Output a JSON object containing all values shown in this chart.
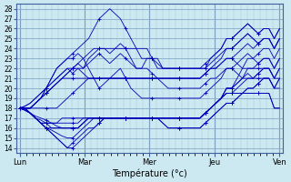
{
  "xlabel": "Température (°c)",
  "bg_color": "#cce8f0",
  "grid_major_color": "#88aac8",
  "grid_minor_color": "#aac8dc",
  "line_color": "#0000bb",
  "marker": "+",
  "days": [
    "Lun",
    "Mar",
    "Mer",
    "Jeu",
    "Ven"
  ],
  "ylim": [
    13.5,
    28.5
  ],
  "yticks": [
    14,
    15,
    16,
    17,
    18,
    19,
    20,
    21,
    22,
    23,
    24,
    25,
    26,
    27,
    28
  ],
  "n_per_day": 10,
  "n_days": 5,
  "series": [
    [
      18,
      18.2,
      18.5,
      19,
      19.5,
      20,
      20.5,
      21,
      21.5,
      22,
      22,
      22.5,
      22,
      23,
      23.5,
      24,
      24,
      23.5,
      24,
      24.5,
      24,
      23,
      22,
      22,
      23,
      23,
      23,
      22,
      22,
      22,
      22,
      22,
      22,
      22,
      22,
      22,
      23,
      23.5,
      24,
      25,
      25,
      25.5,
      26,
      26.5,
      26,
      25.5,
      26,
      26,
      25,
      26
    ],
    [
      18,
      18.2,
      18.5,
      19,
      19.5,
      20,
      20.5,
      21,
      21.5,
      22,
      21.5,
      22,
      22,
      22.5,
      23,
      23.5,
      23,
      22.5,
      23,
      23.5,
      23,
      22.5,
      22,
      22,
      22,
      21.5,
      21,
      21,
      21,
      21,
      21,
      21,
      21,
      21,
      21,
      21.5,
      22,
      22.5,
      23,
      24,
      24,
      24.5,
      25,
      25.5,
      25,
      24.5,
      25,
      25,
      24,
      25
    ],
    [
      18,
      18,
      18,
      18.5,
      19,
      20,
      21,
      22,
      22.5,
      23,
      23,
      23.5,
      23,
      22,
      21,
      20,
      20.5,
      21,
      21.5,
      22,
      21,
      20,
      19.5,
      19,
      19,
      19,
      19,
      19,
      19,
      19,
      19,
      19,
      19,
      19,
      19,
      19.5,
      20,
      20.5,
      21,
      22,
      22,
      22.5,
      23,
      23.5,
      23,
      22.5,
      23,
      23,
      22,
      23
    ],
    [
      18,
      18,
      18,
      18.5,
      19,
      20,
      21,
      22,
      22.5,
      23,
      23.5,
      24,
      24.5,
      25,
      26,
      27,
      27.5,
      28,
      27.5,
      27,
      26,
      25,
      24,
      23,
      23,
      23,
      22.5,
      22,
      22,
      22,
      22,
      22,
      22,
      22,
      22,
      22,
      22.5,
      23,
      23.5,
      24,
      24,
      24.5,
      25,
      25.5,
      25,
      24.5,
      25,
      25,
      24,
      25
    ],
    [
      18,
      18,
      17.5,
      17,
      16.5,
      16,
      15.5,
      15,
      14.5,
      14,
      14,
      14.5,
      15,
      15.5,
      16,
      16.5,
      17,
      17,
      17,
      17,
      17,
      17,
      17,
      17,
      17,
      17,
      17,
      17,
      17,
      17,
      17,
      17,
      17,
      17,
      17,
      17.5,
      18,
      18.5,
      19,
      20,
      20,
      21,
      22,
      23,
      23,
      23.5,
      24,
      24,
      23,
      24
    ],
    [
      18,
      18,
      17.5,
      17,
      16.5,
      16,
      15.5,
      15,
      14.5,
      14,
      14.5,
      15,
      15.5,
      16,
      16,
      16.5,
      17,
      17,
      17,
      17,
      17,
      17,
      17,
      17,
      17,
      17,
      17,
      17,
      17,
      17,
      17,
      17,
      17,
      17,
      17,
      17.5,
      18,
      18.5,
      19,
      20,
      20,
      20.5,
      21,
      22,
      22,
      22.5,
      23,
      23,
      22,
      23
    ],
    [
      18,
      17.8,
      17.5,
      17,
      16.5,
      16,
      15.8,
      15.5,
      15.2,
      15,
      15,
      15.5,
      16,
      16.5,
      17,
      17,
      17,
      17,
      17,
      17,
      17,
      17,
      17,
      17,
      17,
      17,
      17,
      17,
      17,
      17,
      17,
      17,
      17,
      17,
      17,
      17.5,
      18,
      18.5,
      19,
      20,
      20,
      20.5,
      21,
      21.5,
      21,
      21.5,
      22,
      22,
      21,
      22
    ],
    [
      18,
      17.8,
      17.5,
      17,
      16.5,
      16,
      16,
      16,
      16,
      16,
      16,
      16,
      16.5,
      17,
      17,
      17,
      17,
      17,
      17,
      17,
      17,
      17,
      17,
      17,
      17,
      17,
      17,
      17,
      17,
      17,
      17,
      17,
      17,
      17,
      17,
      17.5,
      18,
      18.5,
      19,
      19.5,
      19.5,
      20,
      20.5,
      21,
      21,
      21.5,
      22,
      22,
      21,
      22
    ],
    [
      18,
      17.8,
      17.5,
      17,
      16.8,
      16.5,
      16,
      16,
      16,
      16,
      16,
      16,
      16.5,
      17,
      17,
      17,
      17,
      17,
      17,
      17,
      17,
      17,
      17,
      17,
      17,
      17,
      17,
      16.5,
      16,
      16,
      16,
      16,
      16,
      16,
      16,
      16.5,
      17,
      17.5,
      18,
      18.5,
      18.5,
      19,
      19.5,
      20,
      20,
      20.5,
      21,
      21,
      20,
      21
    ],
    [
      18,
      17.8,
      17.5,
      17.2,
      17,
      16.8,
      16.5,
      16.2,
      16,
      16,
      16,
      16,
      16.5,
      17,
      17,
      17,
      17,
      17,
      17,
      17,
      17,
      17,
      17,
      17,
      17,
      17,
      17,
      16.5,
      16,
      16,
      16,
      16,
      16,
      16,
      16,
      16.5,
      17,
      17.5,
      18,
      18.5,
      18.5,
      19,
      19.5,
      20,
      20,
      20.5,
      21,
      21,
      20,
      21
    ],
    [
      18,
      18,
      18,
      18,
      18,
      18,
      18,
      18,
      18.5,
      19,
      19.5,
      20,
      20.5,
      21,
      21,
      21,
      21,
      21,
      21,
      21,
      21,
      21,
      21,
      21,
      21,
      21,
      21,
      21,
      21,
      21,
      21,
      21,
      21,
      21,
      21,
      21.5,
      22,
      22,
      22.5,
      23,
      23,
      22.5,
      22,
      22,
      22,
      22,
      22,
      22,
      21,
      21
    ],
    [
      18,
      18,
      18,
      18.5,
      19,
      19.5,
      20,
      20.5,
      21,
      21,
      21,
      21,
      21,
      21,
      21,
      21,
      21,
      21,
      21,
      21,
      21,
      21,
      21,
      21,
      21,
      21,
      21,
      20.5,
      20,
      20,
      20,
      20,
      20,
      20,
      20,
      20.5,
      21,
      21,
      21.5,
      22,
      22,
      21.5,
      21,
      21,
      21,
      21,
      21,
      21,
      20,
      20
    ],
    [
      18,
      18,
      17.5,
      17,
      16.5,
      16.5,
      16.5,
      16.5,
      17,
      17,
      17,
      17,
      17,
      17,
      17,
      17,
      17,
      17,
      17,
      17,
      17,
      17,
      17,
      17,
      17,
      17,
      17,
      17,
      17,
      17,
      17,
      17,
      17,
      17,
      17,
      17.5,
      18,
      18.5,
      19,
      19.5,
      19.5,
      19.5,
      19.5,
      19.5,
      19.5,
      19.5,
      19.5,
      19.5,
      18,
      18
    ],
    [
      18,
      18,
      17.5,
      17,
      16.5,
      16.5,
      16.5,
      16.5,
      16.5,
      16.5,
      16.5,
      16.5,
      17,
      17,
      17,
      17,
      17,
      17,
      17,
      17,
      17,
      17,
      17,
      17,
      17,
      17,
      17,
      17,
      17,
      17,
      17,
      17,
      17,
      17,
      17,
      17.5,
      18,
      18.5,
      19,
      19.5,
      19.5,
      19.5,
      19.5,
      19.5,
      19.5,
      19.5,
      19.5,
      19.5,
      18,
      18
    ],
    [
      18,
      18,
      18,
      18.5,
      19,
      19.5,
      20,
      20.5,
      21,
      21.5,
      22,
      22.5,
      23,
      23.5,
      24,
      24,
      24,
      24,
      24,
      24,
      24,
      24,
      24,
      24,
      24,
      23,
      22,
      22,
      22,
      22,
      22,
      22,
      22,
      22,
      22,
      22.5,
      23,
      23.5,
      24,
      25,
      25,
      25.5,
      26,
      26.5,
      26,
      25.5,
      26,
      26,
      25,
      26
    ],
    [
      18,
      18,
      18,
      18.5,
      19,
      19.5,
      20,
      20.5,
      21,
      21.5,
      22,
      22,
      21.5,
      21,
      21,
      21,
      21,
      21,
      21,
      21,
      21,
      21,
      21,
      21,
      21,
      21,
      21,
      21,
      21,
      21,
      21,
      21,
      21,
      21,
      21,
      21.5,
      22,
      22,
      22.5,
      23,
      23,
      23.5,
      24,
      24.5,
      24,
      24.5,
      25,
      25,
      24,
      25
    ]
  ]
}
